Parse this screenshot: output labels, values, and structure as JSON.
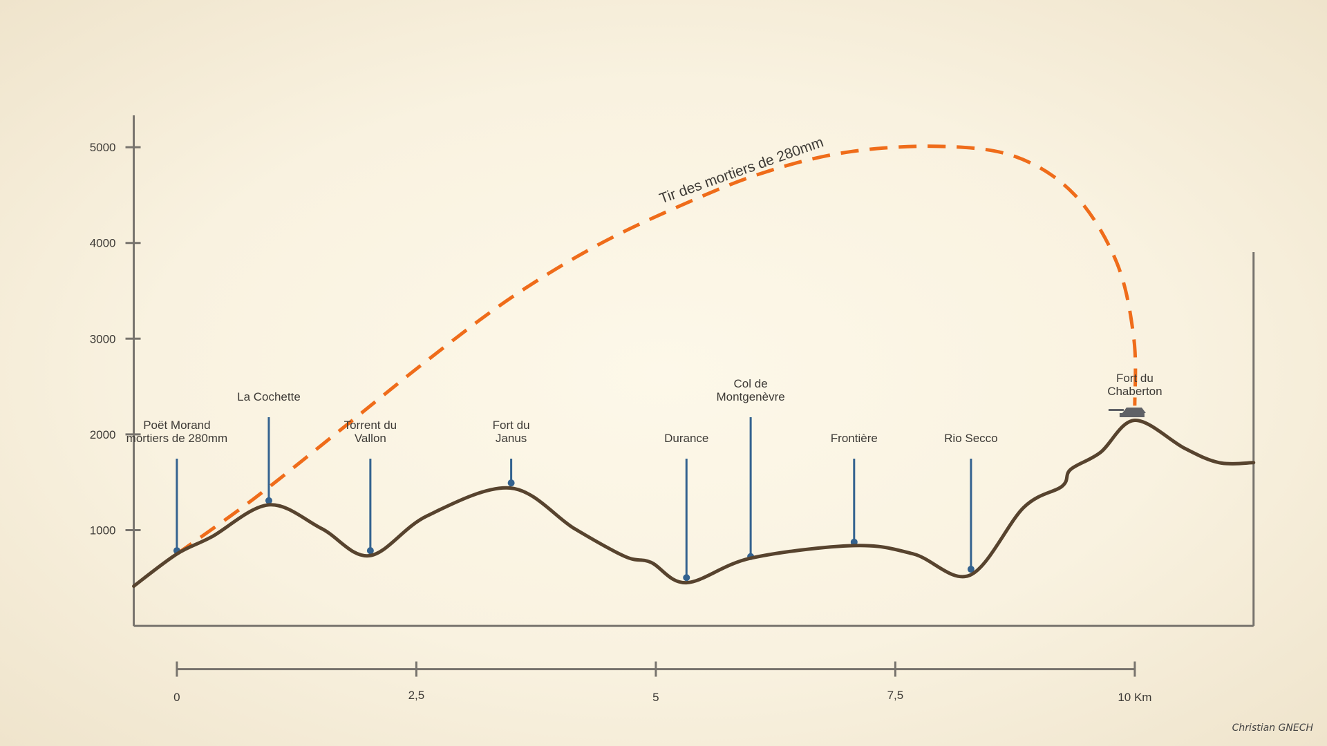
{
  "chart_data": {
    "type": "line",
    "title": "Tir des mortiers de 280mm",
    "xlabel": "",
    "ylabel": "",
    "xlim": [
      -0.45,
      11.24
    ],
    "ylim": [
      0,
      5300
    ],
    "grid": false,
    "y_ticks": [
      "1000",
      "2000",
      "3000",
      "4000",
      "5000"
    ],
    "y_tick_values": [
      1000,
      2000,
      3000,
      4000,
      5000
    ],
    "x_ticks": [
      "0",
      "2,5",
      "5",
      "7,5",
      "10 Km"
    ],
    "x_tick_values": [
      0,
      2.5,
      5,
      7.5,
      10
    ],
    "series": [
      {
        "role": "terrain",
        "color": "#57432e",
        "points": [
          [
            -0.45,
            415
          ],
          [
            0,
            751
          ],
          [
            0.36,
            928
          ],
          [
            0.96,
            1264
          ],
          [
            1.51,
            1017
          ],
          [
            2.01,
            733
          ],
          [
            2.61,
            1148
          ],
          [
            3.48,
            1440
          ],
          [
            4.15,
            1016
          ],
          [
            4.68,
            724
          ],
          [
            4.95,
            663
          ],
          [
            5.32,
            451
          ],
          [
            5.99,
            707
          ],
          [
            7.07,
            839
          ],
          [
            7.69,
            751
          ],
          [
            8.28,
            530
          ],
          [
            8.84,
            1237
          ],
          [
            9.24,
            1458
          ],
          [
            9.33,
            1634
          ],
          [
            9.64,
            1811
          ],
          [
            10,
            2147
          ],
          [
            10.52,
            1855
          ],
          [
            10.88,
            1705
          ],
          [
            11.24,
            1705
          ]
        ]
      },
      {
        "role": "trajectory",
        "color": "#ef6c1a",
        "dashed": true,
        "points": [
          [
            0,
            751
          ],
          [
            0.8,
            1325
          ],
          [
            1.69,
            2032
          ],
          [
            2.57,
            2739
          ],
          [
            3.45,
            3401
          ],
          [
            4.34,
            3949
          ],
          [
            5.22,
            4373
          ],
          [
            6.1,
            4726
          ],
          [
            6.99,
            4947
          ],
          [
            7.95,
            5009
          ],
          [
            8.75,
            4903
          ],
          [
            9.37,
            4505
          ],
          [
            9.81,
            3799
          ],
          [
            9.99,
            3004
          ],
          [
            10,
            2300
          ]
        ]
      }
    ],
    "annotations": [
      {
        "lines": [
          "Poët Morand",
          "mortiers de 280mm"
        ],
        "km": 0,
        "elev": 786,
        "stem": "short"
      },
      {
        "lines": [
          "La Cochette"
        ],
        "km": 0.96,
        "elev": 1308,
        "stem": "tall"
      },
      {
        "lines": [
          "Torrent du",
          "Vallon"
        ],
        "km": 2.02,
        "elev": 786,
        "stem": "short"
      },
      {
        "lines": [
          "Fort du",
          "Janus"
        ],
        "km": 3.49,
        "elev": 1493,
        "stem": "short"
      },
      {
        "lines": [
          "Durance"
        ],
        "km": 5.32,
        "elev": 504,
        "stem": "short"
      },
      {
        "lines": [
          "Col de",
          "Montgenèvre"
        ],
        "km": 5.99,
        "elev": 724,
        "stem": "tall"
      },
      {
        "lines": [
          "Frontière"
        ],
        "km": 7.07,
        "elev": 875,
        "stem": "short"
      },
      {
        "lines": [
          "Rio Secco"
        ],
        "km": 8.29,
        "elev": 592,
        "stem": "short"
      }
    ],
    "target": {
      "lines": [
        "Fort du",
        "Chaberton"
      ],
      "km": 10,
      "icon": "cannon-icon",
      "color": "#5f6166"
    },
    "marker_color": "#33628f",
    "axis_color": "#77736d"
  },
  "signature": "Christian GNECH"
}
